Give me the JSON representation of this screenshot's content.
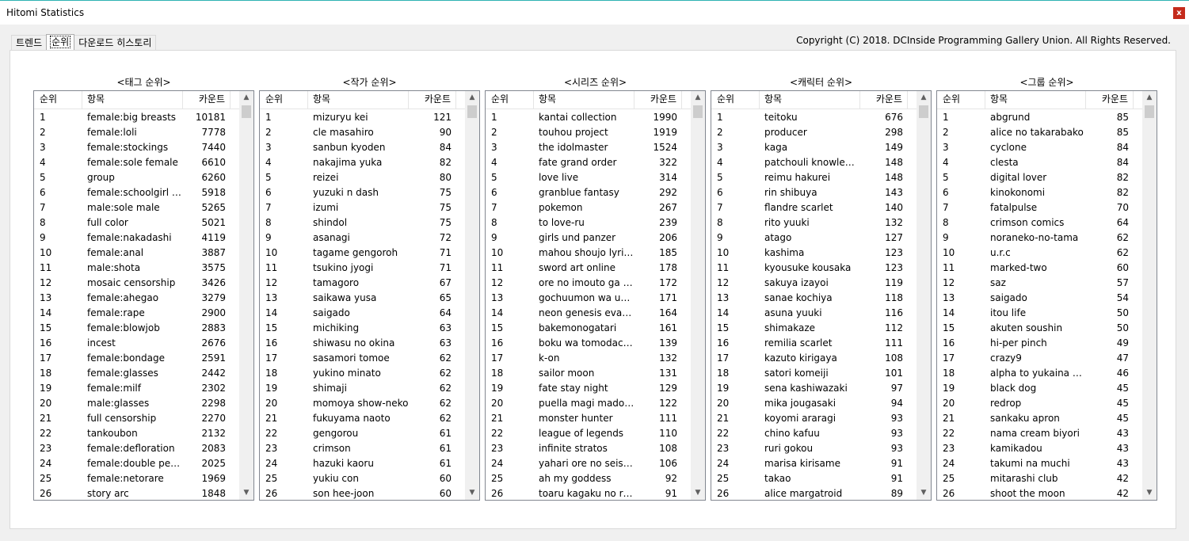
{
  "window": {
    "title": "Hitomi Statistics",
    "close_label": "x"
  },
  "tabs": [
    {
      "label": "트렌드"
    },
    {
      "label": "순위"
    },
    {
      "label": "다운로드 히스토리"
    }
  ],
  "copyright": "Copyright (C) 2018. DCInside Programming Gallery Union. All Rights Reserved.",
  "columns": {
    "rank": "순위",
    "item": "항목",
    "count": "카운트"
  },
  "scroll": {
    "up": "▲",
    "down": "▼"
  },
  "groups": [
    {
      "title": "<태그 순위>",
      "rows": [
        [
          "1",
          "female:big breasts",
          "10181"
        ],
        [
          "2",
          "female:loli",
          "7778"
        ],
        [
          "3",
          "female:stockings",
          "7440"
        ],
        [
          "4",
          "female:sole female",
          "6610"
        ],
        [
          "5",
          "group",
          "6260"
        ],
        [
          "6",
          "female:schoolgirl u...",
          "5918"
        ],
        [
          "7",
          "male:sole male",
          "5265"
        ],
        [
          "8",
          "full color",
          "5021"
        ],
        [
          "9",
          "female:nakadashi",
          "4119"
        ],
        [
          "10",
          "female:anal",
          "3887"
        ],
        [
          "11",
          "male:shota",
          "3575"
        ],
        [
          "12",
          "mosaic censorship",
          "3426"
        ],
        [
          "13",
          "female:ahegao",
          "3279"
        ],
        [
          "14",
          "female:rape",
          "2900"
        ],
        [
          "15",
          "female:blowjob",
          "2883"
        ],
        [
          "16",
          "incest",
          "2676"
        ],
        [
          "17",
          "female:bondage",
          "2591"
        ],
        [
          "18",
          "female:glasses",
          "2442"
        ],
        [
          "19",
          "female:milf",
          "2302"
        ],
        [
          "20",
          "male:glasses",
          "2298"
        ],
        [
          "21",
          "full censorship",
          "2270"
        ],
        [
          "22",
          "tankoubon",
          "2132"
        ],
        [
          "23",
          "female:defloration",
          "2083"
        ],
        [
          "24",
          "female:double pene...",
          "2025"
        ],
        [
          "25",
          "female:netorare",
          "1969"
        ],
        [
          "26",
          "story arc",
          "1848"
        ]
      ]
    },
    {
      "title": "<작가 순위>",
      "rows": [
        [
          "1",
          "mizuryu kei",
          "121"
        ],
        [
          "2",
          "cle masahiro",
          "90"
        ],
        [
          "3",
          "sanbun kyoden",
          "84"
        ],
        [
          "4",
          "nakajima yuka",
          "82"
        ],
        [
          "5",
          "reizei",
          "80"
        ],
        [
          "6",
          "yuzuki n dash",
          "75"
        ],
        [
          "7",
          "izumi",
          "75"
        ],
        [
          "8",
          "shindol",
          "75"
        ],
        [
          "9",
          "asanagi",
          "72"
        ],
        [
          "10",
          "tagame gengoroh",
          "71"
        ],
        [
          "11",
          "tsukino jyogi",
          "71"
        ],
        [
          "12",
          "tamagoro",
          "67"
        ],
        [
          "13",
          "saikawa yusa",
          "65"
        ],
        [
          "14",
          "saigado",
          "64"
        ],
        [
          "15",
          "michiking",
          "63"
        ],
        [
          "16",
          "shiwasu no okina",
          "63"
        ],
        [
          "17",
          "sasamori tomoe",
          "62"
        ],
        [
          "18",
          "yukino minato",
          "62"
        ],
        [
          "19",
          "shimaji",
          "62"
        ],
        [
          "20",
          "momoya show-neko",
          "62"
        ],
        [
          "21",
          "fukuyama naoto",
          "62"
        ],
        [
          "22",
          "gengorou",
          "61"
        ],
        [
          "23",
          "crimson",
          "61"
        ],
        [
          "24",
          "hazuki kaoru",
          "61"
        ],
        [
          "25",
          "yukiu con",
          "60"
        ],
        [
          "26",
          "son hee-joon",
          "60"
        ]
      ]
    },
    {
      "title": "<시리즈 순위>",
      "rows": [
        [
          "1",
          "kantai collection",
          "1990"
        ],
        [
          "2",
          "touhou project",
          "1919"
        ],
        [
          "3",
          "the idolmaster",
          "1524"
        ],
        [
          "4",
          "fate grand order",
          "322"
        ],
        [
          "5",
          "love live",
          "314"
        ],
        [
          "6",
          "granblue fantasy",
          "292"
        ],
        [
          "7",
          "pokemon",
          "267"
        ],
        [
          "8",
          "to love-ru",
          "239"
        ],
        [
          "9",
          "girls und panzer",
          "206"
        ],
        [
          "10",
          "mahou shoujo lyric...",
          "185"
        ],
        [
          "11",
          "sword art online",
          "178"
        ],
        [
          "12",
          "ore no imouto ga k...",
          "172"
        ],
        [
          "13",
          "gochuumon wa us...",
          "171"
        ],
        [
          "14",
          "neon genesis evang...",
          "164"
        ],
        [
          "15",
          "bakemonogatari",
          "161"
        ],
        [
          "16",
          "boku wa tomodach...",
          "139"
        ],
        [
          "17",
          "k-on",
          "132"
        ],
        [
          "18",
          "sailor moon",
          "131"
        ],
        [
          "19",
          "fate stay night",
          "129"
        ],
        [
          "20",
          "puella magi madok...",
          "122"
        ],
        [
          "21",
          "monster hunter",
          "111"
        ],
        [
          "22",
          "league of legends",
          "110"
        ],
        [
          "23",
          "infinite stratos",
          "108"
        ],
        [
          "24",
          "yahari ore no seish...",
          "106"
        ],
        [
          "25",
          "ah my goddess",
          "92"
        ],
        [
          "26",
          "toaru kagaku no rai...",
          "91"
        ]
      ]
    },
    {
      "title": "<캐릭터 순위>",
      "rows": [
        [
          "1",
          "teitoku",
          "676"
        ],
        [
          "2",
          "producer",
          "298"
        ],
        [
          "3",
          "kaga",
          "149"
        ],
        [
          "4",
          "patchouli knowledge",
          "148"
        ],
        [
          "5",
          "reimu hakurei",
          "148"
        ],
        [
          "6",
          "rin shibuya",
          "143"
        ],
        [
          "7",
          "flandre scarlet",
          "140"
        ],
        [
          "8",
          "rito yuuki",
          "132"
        ],
        [
          "9",
          "atago",
          "127"
        ],
        [
          "10",
          "kashima",
          "123"
        ],
        [
          "11",
          "kyousuke kousaka",
          "123"
        ],
        [
          "12",
          "sakuya izayoi",
          "119"
        ],
        [
          "13",
          "sanae kochiya",
          "118"
        ],
        [
          "14",
          "asuna yuuki",
          "116"
        ],
        [
          "15",
          "shimakaze",
          "112"
        ],
        [
          "16",
          "remilia scarlet",
          "111"
        ],
        [
          "17",
          "kazuto kirigaya",
          "108"
        ],
        [
          "18",
          "satori komeiji",
          "101"
        ],
        [
          "19",
          "sena kashiwazaki",
          "97"
        ],
        [
          "20",
          "mika jougasaki",
          "94"
        ],
        [
          "21",
          "koyomi araragi",
          "93"
        ],
        [
          "22",
          "chino kafuu",
          "93"
        ],
        [
          "23",
          "ruri gokou",
          "93"
        ],
        [
          "24",
          "marisa kirisame",
          "91"
        ],
        [
          "25",
          "takao",
          "91"
        ],
        [
          "26",
          "alice margatroid",
          "89"
        ]
      ]
    },
    {
      "title": "<그룹 순위>",
      "rows": [
        [
          "1",
          "abgrund",
          "85"
        ],
        [
          "2",
          "alice no takarabako",
          "85"
        ],
        [
          "3",
          "cyclone",
          "84"
        ],
        [
          "4",
          "clesta",
          "84"
        ],
        [
          "5",
          "digital lover",
          "82"
        ],
        [
          "6",
          "kinokonomi",
          "82"
        ],
        [
          "7",
          "fatalpulse",
          "70"
        ],
        [
          "8",
          "crimson comics",
          "64"
        ],
        [
          "9",
          "noraneko-no-tama",
          "62"
        ],
        [
          "10",
          "u.r.c",
          "62"
        ],
        [
          "11",
          "marked-two",
          "60"
        ],
        [
          "12",
          "saz",
          "57"
        ],
        [
          "13",
          "saigado",
          "54"
        ],
        [
          "14",
          "itou life",
          "50"
        ],
        [
          "15",
          "akuten soushin",
          "50"
        ],
        [
          "16",
          "hi-per pinch",
          "49"
        ],
        [
          "17",
          "crazy9",
          "47"
        ],
        [
          "18",
          "alpha to yukaina na...",
          "46"
        ],
        [
          "19",
          "black dog",
          "45"
        ],
        [
          "20",
          "redrop",
          "45"
        ],
        [
          "21",
          "sankaku apron",
          "45"
        ],
        [
          "22",
          "nama cream biyori",
          "43"
        ],
        [
          "23",
          "kamikadou",
          "43"
        ],
        [
          "24",
          "takumi na muchi",
          "43"
        ],
        [
          "25",
          "mitarashi club",
          "42"
        ],
        [
          "26",
          "shoot the moon",
          "42"
        ]
      ]
    }
  ]
}
